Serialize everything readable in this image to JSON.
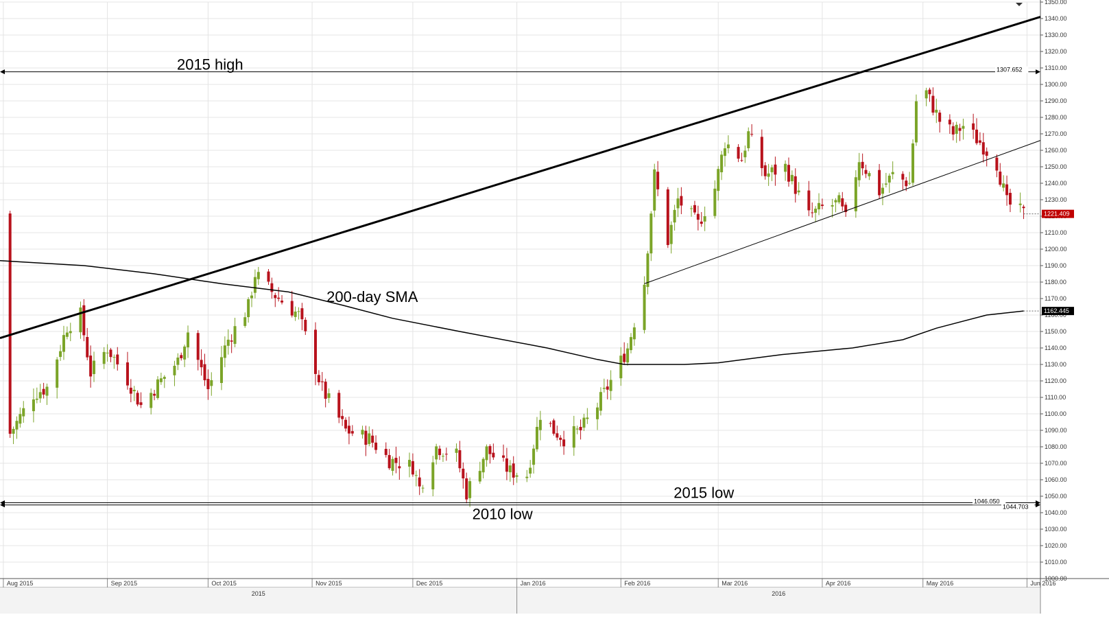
{
  "chart_data": {
    "type": "candlestick",
    "title": "",
    "xlabel": "",
    "ylabel": "",
    "ylim": [
      1000,
      1350
    ],
    "y_ticks": [
      "1000.00",
      "1010.00",
      "1020.00",
      "1030.00",
      "1040.00",
      "1050.00",
      "1060.00",
      "1070.00",
      "1080.00",
      "1090.00",
      "1100.00",
      "1110.00",
      "1120.00",
      "1130.00",
      "1140.00",
      "1150.00",
      "1160.00",
      "1170.00",
      "1180.00",
      "1190.00",
      "1200.00",
      "1210.00",
      "1220.00",
      "1230.00",
      "1240.00",
      "1250.00",
      "1260.00",
      "1270.00",
      "1280.00",
      "1290.00",
      "1300.00",
      "1310.00",
      "1320.00",
      "1330.00",
      "1340.00",
      "1350.00"
    ],
    "x_range": [
      "2015-07-31",
      "2016-06-05"
    ],
    "month_labels": [
      {
        "date": "2015-08-01",
        "label": "Aug 2015"
      },
      {
        "date": "2015-09-01",
        "label": "Sep 2015"
      },
      {
        "date": "2015-10-01",
        "label": "Oct 2015"
      },
      {
        "date": "2015-11-01",
        "label": "Nov 2015"
      },
      {
        "date": "2015-12-01",
        "label": "Dec 2015"
      },
      {
        "date": "2016-01-01",
        "label": "Jan 2016"
      },
      {
        "date": "2016-02-01",
        "label": "Feb 2016"
      },
      {
        "date": "2016-03-01",
        "label": "Mar 2016"
      },
      {
        "date": "2016-04-01",
        "label": "Apr 2016"
      },
      {
        "date": "2016-05-01",
        "label": "May 2016"
      },
      {
        "date": "2016-06-01",
        "label": "Jun 2016"
      }
    ],
    "year_labels": [
      {
        "from": "2015-07-31",
        "to": "2016-01-01",
        "label": "2015"
      },
      {
        "from": "2016-01-01",
        "to": "2016-06-05",
        "label": "2016"
      }
    ],
    "candle_anchors": [
      {
        "date": "2015-08-03",
        "close": 1088
      },
      {
        "date": "2015-08-10",
        "close": 1112
      },
      {
        "date": "2015-08-14",
        "close": 1116
      },
      {
        "date": "2015-08-20",
        "close": 1153
      },
      {
        "date": "2015-08-24",
        "close": 1160
      },
      {
        "date": "2015-08-27",
        "close": 1125
      },
      {
        "date": "2015-09-01",
        "close": 1140
      },
      {
        "date": "2015-09-07",
        "close": 1121
      },
      {
        "date": "2015-09-11",
        "close": 1105
      },
      {
        "date": "2015-09-16",
        "close": 1118
      },
      {
        "date": "2015-09-22",
        "close": 1132
      },
      {
        "date": "2015-09-25",
        "close": 1150
      },
      {
        "date": "2015-10-01",
        "close": 1115
      },
      {
        "date": "2015-10-07",
        "close": 1145
      },
      {
        "date": "2015-10-13",
        "close": 1165
      },
      {
        "date": "2015-10-15",
        "close": 1185
      },
      {
        "date": "2015-10-21",
        "close": 1172
      },
      {
        "date": "2015-10-28",
        "close": 1160
      },
      {
        "date": "2015-11-04",
        "close": 1115
      },
      {
        "date": "2015-11-11",
        "close": 1090
      },
      {
        "date": "2015-11-18",
        "close": 1085
      },
      {
        "date": "2015-11-24",
        "close": 1072
      },
      {
        "date": "2015-12-01",
        "close": 1068
      },
      {
        "date": "2015-12-03",
        "close": 1055
      },
      {
        "date": "2015-12-08",
        "close": 1080
      },
      {
        "date": "2015-12-14",
        "close": 1075
      },
      {
        "date": "2015-12-17",
        "close": 1052
      },
      {
        "date": "2015-12-23",
        "close": 1078
      },
      {
        "date": "2015-12-30",
        "close": 1065
      },
      {
        "date": "2016-01-04",
        "close": 1063
      },
      {
        "date": "2016-01-08",
        "close": 1100
      },
      {
        "date": "2016-01-12",
        "close": 1090
      },
      {
        "date": "2016-01-15",
        "close": 1085
      },
      {
        "date": "2016-01-20",
        "close": 1090
      },
      {
        "date": "2016-01-25",
        "close": 1105
      },
      {
        "date": "2016-01-29",
        "close": 1120
      },
      {
        "date": "2016-02-03",
        "close": 1140
      },
      {
        "date": "2016-02-08",
        "close": 1180
      },
      {
        "date": "2016-02-11",
        "close": 1245
      },
      {
        "date": "2016-02-15",
        "close": 1205
      },
      {
        "date": "2016-02-18",
        "close": 1230
      },
      {
        "date": "2016-02-24",
        "close": 1215
      },
      {
        "date": "2016-02-29",
        "close": 1237
      },
      {
        "date": "2016-03-03",
        "close": 1265
      },
      {
        "date": "2016-03-08",
        "close": 1255
      },
      {
        "date": "2016-03-10",
        "close": 1270
      },
      {
        "date": "2016-03-15",
        "close": 1245
      },
      {
        "date": "2016-03-21",
        "close": 1250
      },
      {
        "date": "2016-03-28",
        "close": 1220
      },
      {
        "date": "2016-04-01",
        "close": 1225
      },
      {
        "date": "2016-04-06",
        "close": 1228
      },
      {
        "date": "2016-04-08",
        "close": 1218
      },
      {
        "date": "2016-04-12",
        "close": 1255
      },
      {
        "date": "2016-04-18",
        "close": 1235
      },
      {
        "date": "2016-04-22",
        "close": 1245
      },
      {
        "date": "2016-04-27",
        "close": 1240
      },
      {
        "date": "2016-04-29",
        "close": 1290
      },
      {
        "date": "2016-05-02",
        "close": 1295
      },
      {
        "date": "2016-05-06",
        "close": 1278
      },
      {
        "date": "2016-05-10",
        "close": 1270
      },
      {
        "date": "2016-05-13",
        "close": 1275
      },
      {
        "date": "2016-05-18",
        "close": 1265
      },
      {
        "date": "2016-05-23",
        "close": 1252
      },
      {
        "date": "2016-05-26",
        "close": 1228
      },
      {
        "date": "2016-05-31",
        "close": 1221.409
      }
    ],
    "series": [
      {
        "name": "200-day SMA",
        "points": [
          [
            "2015-07-31",
            1193
          ],
          [
            "2015-08-25",
            1190
          ],
          [
            "2015-09-15",
            1185
          ],
          [
            "2015-10-05",
            1179
          ],
          [
            "2015-10-25",
            1174
          ],
          [
            "2015-11-10",
            1166
          ],
          [
            "2015-11-25",
            1158
          ],
          [
            "2015-12-15",
            1150
          ],
          [
            "2016-01-10",
            1140
          ],
          [
            "2016-01-25",
            1133
          ],
          [
            "2016-02-02",
            1130
          ],
          [
            "2016-02-20",
            1130
          ],
          [
            "2016-03-01",
            1131
          ],
          [
            "2016-03-20",
            1136
          ],
          [
            "2016-04-10",
            1140
          ],
          [
            "2016-04-25",
            1145
          ],
          [
            "2016-05-05",
            1152
          ],
          [
            "2016-05-20",
            1160
          ],
          [
            "2016-05-31",
            1162.445
          ]
        ]
      }
    ],
    "lines": [
      {
        "kind": "resistance-trend",
        "from": [
          "2015-07-31",
          1146
        ],
        "to": [
          "2016-06-05",
          1341
        ]
      },
      {
        "kind": "support-trend",
        "from": [
          "2016-02-08",
          1179
        ],
        "to": [
          "2016-06-05",
          1266
        ]
      }
    ],
    "levels": [
      {
        "value": 1307.652,
        "value_label": "1307.652",
        "annotation": "2015 high"
      },
      {
        "value": 1046.05,
        "value_label": "1046.050",
        "annotation": "2015 low"
      },
      {
        "value": 1044.703,
        "value_label": "1044.703",
        "annotation": "2010 low"
      }
    ],
    "annotations": [
      {
        "text": "200-day SMA",
        "date": "2015-11-10",
        "value": 1168
      }
    ],
    "price_tags": [
      {
        "value": 1221.409,
        "label": "1221.409",
        "color": "#c00000"
      },
      {
        "value": 1162.445,
        "label": "1162.445",
        "color": "#000000"
      }
    ],
    "colors": {
      "up": "#7ba428",
      "down": "#b8121c",
      "grid": "#e4e4e4",
      "line": "#000000",
      "background": "#ffffff"
    },
    "legend": "none",
    "grid": true
  }
}
